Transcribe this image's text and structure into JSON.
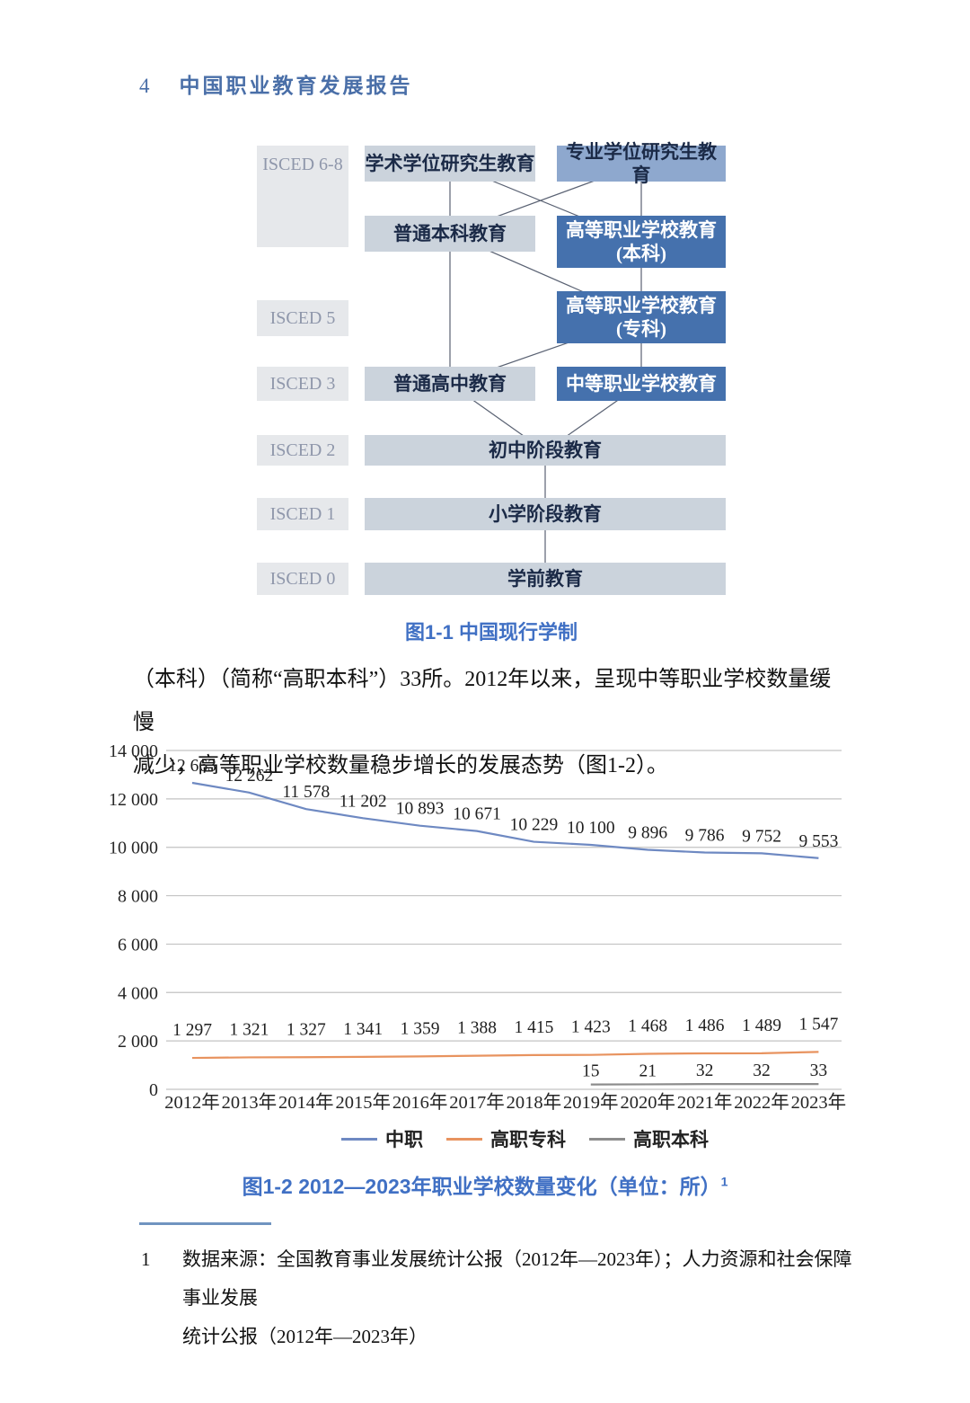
{
  "header": {
    "page_number": "4",
    "title": "中国职业教育发展报告"
  },
  "diagram": {
    "caption": "图1-1 中国现行学制",
    "levels": [
      {
        "label": "ISCED 6-8"
      },
      {
        "label": "ISCED 5"
      },
      {
        "label": "ISCED 3"
      },
      {
        "label": "ISCED 2"
      },
      {
        "label": "ISCED 1"
      },
      {
        "label": "ISCED 0"
      }
    ],
    "boxes": {
      "academic_graduate": {
        "text": "学术学位研究生教育"
      },
      "professional_graduate": {
        "text": "专业学位研究生教育"
      },
      "general_undergraduate": {
        "text": "普通本科教育"
      },
      "higher_voc_bachelor": {
        "line1": "高等职业学校教育",
        "line2": "(本科)"
      },
      "higher_voc_associate": {
        "line1": "高等职业学校教育",
        "line2": "(专科)"
      },
      "general_high_school": {
        "text": "普通高中教育"
      },
      "secondary_vocational": {
        "text": "中等职业学校教育"
      },
      "junior_secondary": {
        "text": "初中阶段教育"
      },
      "primary": {
        "text": "小学阶段教育"
      },
      "preschool": {
        "text": "学前教育"
      }
    }
  },
  "paragraph": {
    "lines": [
      "（本科）（简称“高职本科”）33所。2012年以来，呈现中等职业学校数量缓慢",
      "减少，高等职业学校数量稳步增长的发展态势（图1-2）。"
    ]
  },
  "chart_data": {
    "type": "line",
    "title": "图1-2 2012—2023年职业学校数量变化（单位：所）",
    "title_superscript": "1",
    "categories": [
      "2012年",
      "2013年",
      "2014年",
      "2015年",
      "2016年",
      "2017年",
      "2018年",
      "2019年",
      "2020年",
      "2021年",
      "2022年",
      "2023年"
    ],
    "series": [
      {
        "name": "中职",
        "color": "#6e89c2",
        "values": [
          12663,
          12262,
          11578,
          11202,
          10893,
          10671,
          10229,
          10100,
          9896,
          9786,
          9752,
          9553
        ],
        "labels": [
          "12 663",
          "12 262",
          "11 578",
          "11 202",
          "10 893",
          "10 671",
          "10 229",
          "10 100",
          "9 896",
          "9 786",
          "9 752",
          "9 553"
        ]
      },
      {
        "name": "高职专科",
        "color": "#e8935f",
        "values": [
          1297,
          1321,
          1327,
          1341,
          1359,
          1388,
          1415,
          1423,
          1468,
          1486,
          1489,
          1547
        ],
        "labels": [
          "1 297",
          "1 321",
          "1 327",
          "1 341",
          "1 359",
          "1 388",
          "1 415",
          "1 423",
          "1 468",
          "1 486",
          "1 489",
          "1 547"
        ]
      },
      {
        "name": "高职本科",
        "color": "#8c8c8c",
        "values": [
          null,
          null,
          null,
          null,
          null,
          null,
          null,
          15,
          21,
          32,
          32,
          33
        ],
        "labels": [
          null,
          null,
          null,
          null,
          null,
          null,
          null,
          "15",
          "21",
          "32",
          "32",
          "33"
        ]
      }
    ],
    "ylim": [
      0,
      14000
    ],
    "ytick_step": 2000,
    "ytick_labels": [
      "0",
      "2 000",
      "4 000",
      "6 000",
      "8 000",
      "10 000",
      "12 000",
      "14 000"
    ],
    "grid": true,
    "legend_position": "bottom"
  },
  "footnote": {
    "marker": "1",
    "lines": [
      "数据来源：全国教育事业发展统计公报（2012年—2023年）；人力资源和社会保障事业发展",
      "统计公报（2012年—2023年）"
    ]
  },
  "colors": {
    "header_blue": "#4a6fa8",
    "caption_blue": "#4070c4",
    "box_dark_blue": "#4571ad",
    "box_medium_blue": "#8ea8ce",
    "box_light_gray_blue": "#cbd3dc",
    "isced_label_bg": "#e6e8eb",
    "gridline_gray": "#c3c3c3",
    "footnote_rule_blue": "#7094c0"
  }
}
